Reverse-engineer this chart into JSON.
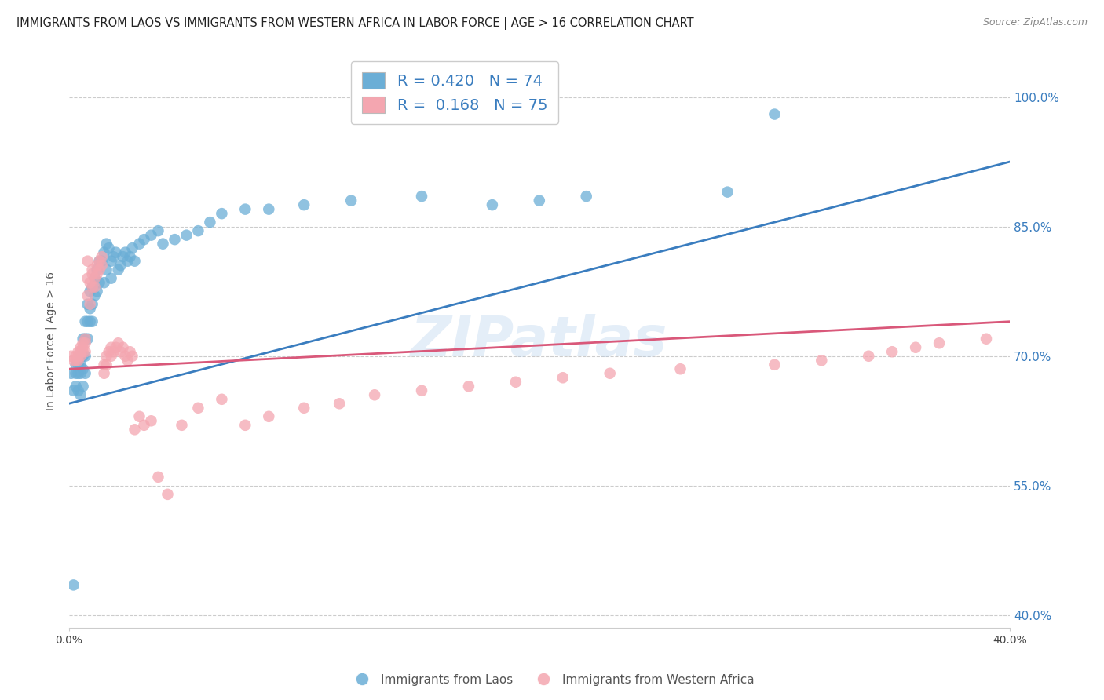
{
  "title": "IMMIGRANTS FROM LAOS VS IMMIGRANTS FROM WESTERN AFRICA IN LABOR FORCE | AGE > 16 CORRELATION CHART",
  "source": "Source: ZipAtlas.com",
  "ylabel": "In Labor Force | Age > 16",
  "ytick_labels": [
    "100.0%",
    "85.0%",
    "70.0%",
    "55.0%",
    "40.0%"
  ],
  "ytick_values": [
    1.0,
    0.85,
    0.7,
    0.55,
    0.4
  ],
  "xlim": [
    0.0,
    0.4
  ],
  "ylim": [
    0.385,
    1.05
  ],
  "r_laos": 0.42,
  "n_laos": 74,
  "r_western_africa": 0.168,
  "n_western_africa": 75,
  "color_laos": "#6baed6",
  "color_western_africa": "#f4a6b0",
  "trendline_laos": "#3a7dbf",
  "trendline_wa": "#d9587a",
  "legend_label_laos": "Immigrants from Laos",
  "legend_label_western_africa": "Immigrants from Western Africa",
  "watermark": "ZIPatlas",
  "scatter_laos_x": [
    0.001,
    0.002,
    0.002,
    0.003,
    0.003,
    0.003,
    0.004,
    0.004,
    0.004,
    0.005,
    0.005,
    0.005,
    0.005,
    0.006,
    0.006,
    0.006,
    0.006,
    0.007,
    0.007,
    0.007,
    0.007,
    0.008,
    0.008,
    0.008,
    0.009,
    0.009,
    0.009,
    0.01,
    0.01,
    0.01,
    0.011,
    0.011,
    0.012,
    0.012,
    0.013,
    0.013,
    0.014,
    0.015,
    0.015,
    0.016,
    0.016,
    0.017,
    0.018,
    0.018,
    0.019,
    0.02,
    0.021,
    0.022,
    0.023,
    0.024,
    0.025,
    0.026,
    0.027,
    0.028,
    0.03,
    0.032,
    0.035,
    0.038,
    0.04,
    0.045,
    0.05,
    0.055,
    0.06,
    0.065,
    0.075,
    0.085,
    0.1,
    0.12,
    0.15,
    0.18,
    0.2,
    0.22,
    0.28,
    0.3
  ],
  "scatter_laos_y": [
    0.68,
    0.435,
    0.66,
    0.69,
    0.68,
    0.665,
    0.69,
    0.68,
    0.66,
    0.7,
    0.69,
    0.68,
    0.655,
    0.72,
    0.7,
    0.685,
    0.665,
    0.74,
    0.72,
    0.7,
    0.68,
    0.76,
    0.74,
    0.72,
    0.775,
    0.755,
    0.74,
    0.78,
    0.76,
    0.74,
    0.79,
    0.77,
    0.8,
    0.775,
    0.81,
    0.785,
    0.81,
    0.82,
    0.785,
    0.83,
    0.8,
    0.825,
    0.81,
    0.79,
    0.815,
    0.82,
    0.8,
    0.805,
    0.815,
    0.82,
    0.81,
    0.815,
    0.825,
    0.81,
    0.83,
    0.835,
    0.84,
    0.845,
    0.83,
    0.835,
    0.84,
    0.845,
    0.855,
    0.865,
    0.87,
    0.87,
    0.875,
    0.88,
    0.885,
    0.875,
    0.88,
    0.885,
    0.89,
    0.98
  ],
  "scatter_wa_x": [
    0.001,
    0.002,
    0.003,
    0.003,
    0.004,
    0.004,
    0.004,
    0.005,
    0.005,
    0.005,
    0.006,
    0.006,
    0.006,
    0.007,
    0.007,
    0.007,
    0.008,
    0.008,
    0.008,
    0.009,
    0.009,
    0.01,
    0.01,
    0.01,
    0.011,
    0.011,
    0.012,
    0.012,
    0.013,
    0.013,
    0.014,
    0.014,
    0.015,
    0.015,
    0.016,
    0.016,
    0.017,
    0.018,
    0.018,
    0.019,
    0.02,
    0.021,
    0.022,
    0.023,
    0.024,
    0.025,
    0.026,
    0.027,
    0.028,
    0.03,
    0.032,
    0.035,
    0.038,
    0.042,
    0.048,
    0.055,
    0.065,
    0.075,
    0.085,
    0.1,
    0.115,
    0.13,
    0.15,
    0.17,
    0.19,
    0.21,
    0.23,
    0.26,
    0.3,
    0.32,
    0.34,
    0.35,
    0.36,
    0.37,
    0.39
  ],
  "scatter_wa_y": [
    0.7,
    0.695,
    0.7,
    0.695,
    0.705,
    0.7,
    0.695,
    0.71,
    0.705,
    0.7,
    0.715,
    0.71,
    0.705,
    0.72,
    0.715,
    0.705,
    0.81,
    0.79,
    0.77,
    0.785,
    0.76,
    0.8,
    0.795,
    0.78,
    0.79,
    0.78,
    0.805,
    0.795,
    0.81,
    0.8,
    0.815,
    0.805,
    0.69,
    0.68,
    0.7,
    0.69,
    0.705,
    0.71,
    0.7,
    0.705,
    0.71,
    0.715,
    0.705,
    0.71,
    0.7,
    0.695,
    0.705,
    0.7,
    0.615,
    0.63,
    0.62,
    0.625,
    0.56,
    0.54,
    0.62,
    0.64,
    0.65,
    0.62,
    0.63,
    0.64,
    0.645,
    0.655,
    0.66,
    0.665,
    0.67,
    0.675,
    0.68,
    0.685,
    0.69,
    0.695,
    0.7,
    0.705,
    0.71,
    0.715,
    0.72
  ]
}
